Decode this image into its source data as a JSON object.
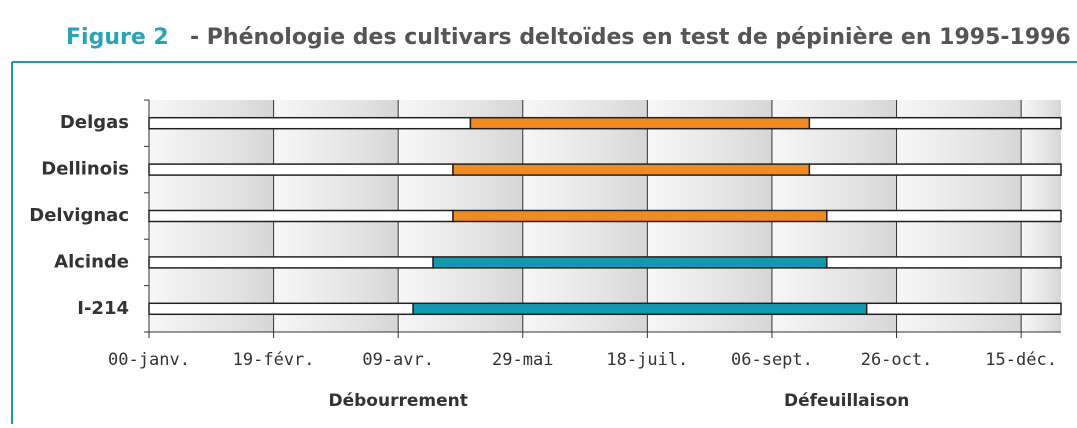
{
  "chart_data": {
    "type": "gantt",
    "figure_label": "Figure 2",
    "title": "- Phénologie des cultivars deltoïdes en test de pépinière en 1995-1996",
    "categories": [
      "Delgas",
      "Dellinois",
      "Delvignac",
      "Alcinde",
      "I-214"
    ],
    "start": [
      129,
      122,
      122,
      114,
      106
    ],
    "end": [
      265,
      265,
      272,
      272,
      288
    ],
    "colors": [
      "#f08a24",
      "#f08a24",
      "#f08a24",
      "#1597b0",
      "#1597b0"
    ],
    "xlim": [
      0,
      366
    ],
    "xticks": [
      {
        "value": 0,
        "label": "00-janv."
      },
      {
        "value": 50,
        "label": "19-févr."
      },
      {
        "value": 100,
        "label": "09-avr."
      },
      {
        "value": 150,
        "label": "29-mai"
      },
      {
        "value": 200,
        "label": "18-juil."
      },
      {
        "value": 250,
        "label": "06-sept."
      },
      {
        "value": 300,
        "label": "26-oct."
      },
      {
        "value": 350,
        "label": "15-déc."
      }
    ],
    "annotations": [
      {
        "text": "Débourrement",
        "x": 100
      },
      {
        "text": "Défeuillaison",
        "x": 280
      }
    ],
    "grid": true
  }
}
